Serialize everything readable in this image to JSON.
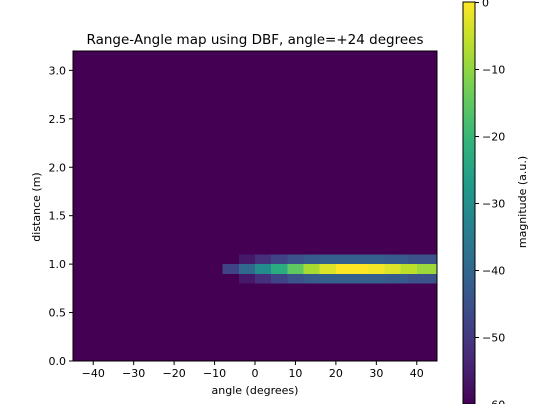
{
  "chart_data": {
    "type": "heatmap",
    "title": "Range-Angle map using DBF, angle=+24 degrees",
    "xlabel": "angle (degrees)",
    "ylabel": "distance (m)",
    "xlim": [
      -45,
      45
    ],
    "ylim": [
      0.0,
      3.2
    ],
    "x_ticks": [
      "−40",
      "−30",
      "−20",
      "−10",
      "0",
      "10",
      "20",
      "30",
      "40"
    ],
    "x_tick_values": [
      -40,
      -30,
      -20,
      -10,
      0,
      10,
      20,
      30,
      40
    ],
    "y_ticks": [
      "0.0",
      "0.5",
      "1.0",
      "1.5",
      "2.0",
      "2.5",
      "3.0"
    ],
    "y_tick_values": [
      0.0,
      0.5,
      1.0,
      1.5,
      2.0,
      2.5,
      3.0
    ],
    "colormap": "viridis",
    "grid": false,
    "colorbar": {
      "label": "magnitude (a.u.)",
      "range": [
        -60,
        0
      ],
      "ticks": [
        "0",
        "−10",
        "−20",
        "−30",
        "−40",
        "−50",
        "−60"
      ],
      "tick_values": [
        0,
        -10,
        -20,
        -30,
        -40,
        -50,
        -60
      ]
    },
    "background_level": -60,
    "peak": {
      "angle": 24,
      "distance": 0.95,
      "level": 0
    },
    "rows": [
      {
        "distance_range": [
          0.8,
          0.9
        ],
        "cells": [
          {
            "angle_range": [
              -4,
              0
            ],
            "level": -56
          },
          {
            "angle_range": [
              0,
              4
            ],
            "level": -52
          },
          {
            "angle_range": [
              4,
              8
            ],
            "level": -48
          },
          {
            "angle_range": [
              8,
              12
            ],
            "level": -45
          },
          {
            "angle_range": [
              12,
              16
            ],
            "level": -43
          },
          {
            "angle_range": [
              16,
              24
            ],
            "level": -42
          },
          {
            "angle_range": [
              24,
              32
            ],
            "level": -42
          },
          {
            "angle_range": [
              32,
              38
            ],
            "level": -43
          },
          {
            "angle_range": [
              38,
              45
            ],
            "level": -45
          }
        ]
      },
      {
        "distance_range": [
          0.9,
          1.0
        ],
        "cells": [
          {
            "angle_range": [
              -8,
              -4
            ],
            "level": -48
          },
          {
            "angle_range": [
              -4,
              0
            ],
            "level": -40
          },
          {
            "angle_range": [
              0,
              4
            ],
            "level": -31
          },
          {
            "angle_range": [
              4,
              8
            ],
            "level": -23
          },
          {
            "angle_range": [
              8,
              12
            ],
            "level": -15
          },
          {
            "angle_range": [
              12,
              16
            ],
            "level": -8
          },
          {
            "angle_range": [
              16,
              20
            ],
            "level": -3
          },
          {
            "angle_range": [
              20,
              24
            ],
            "level": 0
          },
          {
            "angle_range": [
              24,
              28
            ],
            "level": 0
          },
          {
            "angle_range": [
              28,
              32
            ],
            "level": -1
          },
          {
            "angle_range": [
              32,
              36
            ],
            "level": -3
          },
          {
            "angle_range": [
              36,
              40
            ],
            "level": -6
          },
          {
            "angle_range": [
              40,
              45
            ],
            "level": -9
          }
        ]
      },
      {
        "distance_range": [
          1.0,
          1.1
        ],
        "cells": [
          {
            "angle_range": [
              -4,
              0
            ],
            "level": -56
          },
          {
            "angle_range": [
              0,
              4
            ],
            "level": -52
          },
          {
            "angle_range": [
              4,
              8
            ],
            "level": -48
          },
          {
            "angle_range": [
              8,
              12
            ],
            "level": -45
          },
          {
            "angle_range": [
              12,
              16
            ],
            "level": -43
          },
          {
            "angle_range": [
              16,
              24
            ],
            "level": -42
          },
          {
            "angle_range": [
              24,
              32
            ],
            "level": -42
          },
          {
            "angle_range": [
              32,
              38
            ],
            "level": -43
          },
          {
            "angle_range": [
              38,
              45
            ],
            "level": -45
          }
        ]
      }
    ]
  }
}
